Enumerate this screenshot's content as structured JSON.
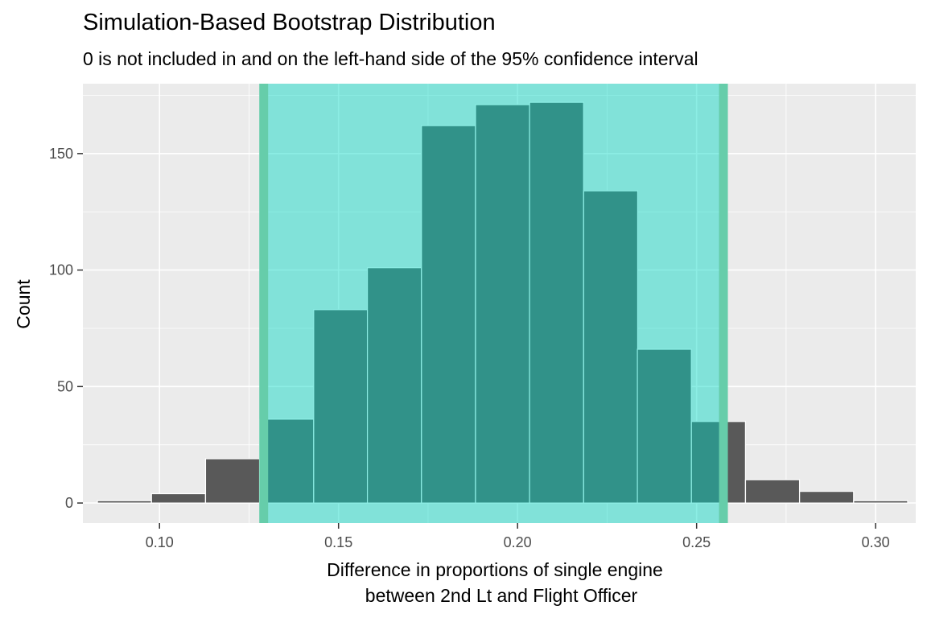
{
  "chart_data": {
    "type": "bar",
    "title": "Simulation-Based Bootstrap Distribution",
    "subtitle": "0 is not included in and on the left-hand side of the 95% confidence interval",
    "xlabel_lines": [
      "Difference in proportions of single engine",
      "between 2nd Lt and Flight Officer"
    ],
    "ylabel": "Count",
    "xlim": [
      0.0786,
      0.3112
    ],
    "ylim": [
      -8.6,
      180
    ],
    "x_ticks": [
      0.1,
      0.15,
      0.2,
      0.25,
      0.3
    ],
    "x_tick_labels": [
      "0.10",
      "0.15",
      "0.20",
      "0.25",
      "0.30"
    ],
    "y_ticks": [
      0,
      50,
      100,
      150
    ],
    "y_tick_labels": [
      "0",
      "50",
      "100",
      "150"
    ],
    "bin_width": 0.01508,
    "bins": [
      {
        "center": 0.0902,
        "count": 1
      },
      {
        "center": 0.1053,
        "count": 4
      },
      {
        "center": 0.1204,
        "count": 19
      },
      {
        "center": 0.1355,
        "count": 36
      },
      {
        "center": 0.1506,
        "count": 83
      },
      {
        "center": 0.1656,
        "count": 101
      },
      {
        "center": 0.1807,
        "count": 162
      },
      {
        "center": 0.1958,
        "count": 171
      },
      {
        "center": 0.2109,
        "count": 172
      },
      {
        "center": 0.226,
        "count": 134
      },
      {
        "center": 0.241,
        "count": 66
      },
      {
        "center": 0.2561,
        "count": 35
      },
      {
        "center": 0.2712,
        "count": 10
      },
      {
        "center": 0.2863,
        "count": 5
      },
      {
        "center": 0.3014,
        "count": 1
      }
    ],
    "confidence_interval": [
      0.1291,
      0.2575
    ],
    "colors": {
      "panel": "#ebebeb",
      "grid": "#ffffff",
      "bar_fill": "#595959",
      "bar_outline": "#ffffff",
      "ci_shade": "#00d6c4",
      "ci_shade_opacity": 0.45,
      "ci_endpoint": "#66cdaa"
    },
    "grid": true,
    "legend": "none"
  }
}
